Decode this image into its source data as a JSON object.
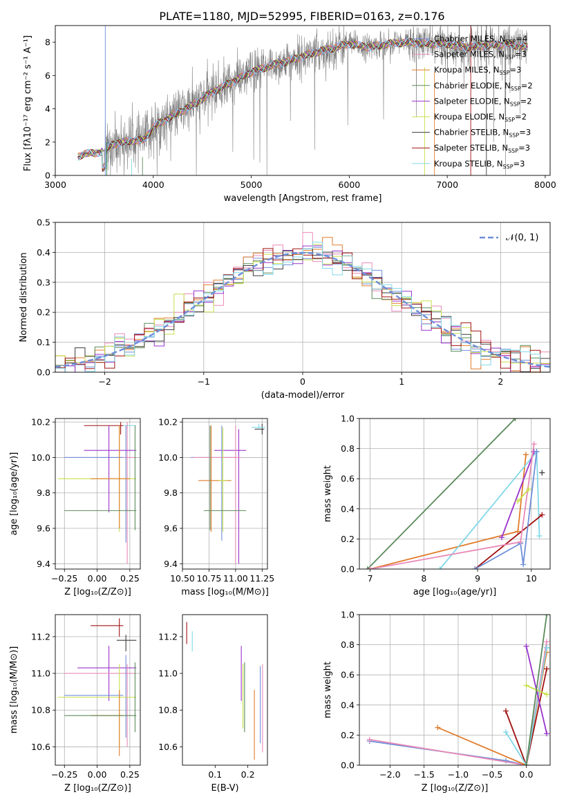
{
  "figure": {
    "title": "PLATE=1180, MJD=52995, FIBERID=0163, z=0.176"
  },
  "palette": [
    "#6d8ed8",
    "#e07b2a",
    "#2e8b57",
    "#9932cc",
    "#ff8c00",
    "#7fa07f",
    "#6a0dad",
    "#c8e04a",
    "#3a3a3a",
    "#a01010",
    "#80d8e8",
    "#e88ab8"
  ],
  "chart_data": [
    {
      "id": "spectrum",
      "type": "line",
      "xlabel": "wavelength [Angstrom, rest frame]",
      "ylabel": "Flux [fλ10⁻¹⁷ erg cm⁻² s⁻¹ A⁻¹]",
      "xlim": [
        3000,
        8050
      ],
      "ylim": [
        0,
        9
      ],
      "xticks": [
        "3000",
        "4000",
        "5000",
        "6000",
        "7000",
        "8000"
      ],
      "yticks": [
        "0",
        "2",
        "4",
        "6",
        "8"
      ],
      "grid": false,
      "legend_position": "top-right",
      "data_range": [
        3230,
        7820
      ],
      "series": [
        {
          "name": "Chabrier MILES, N",
          "sub": "SSP",
          "suffix": "=4",
          "color": "#6d8ed8"
        },
        {
          "name": "Salpeter MILES, N",
          "sub": "SSP",
          "suffix": "=3",
          "color": "#e88ab8"
        },
        {
          "name": "Kroupa MILES, N",
          "sub": "SSP",
          "suffix": "=3",
          "color": "#e07b2a"
        },
        {
          "name": "Chabrier ELODIE, N",
          "sub": "SSP",
          "suffix": "=2",
          "color": "#5a8a5a"
        },
        {
          "name": "Salpeter ELODIE, N",
          "sub": "SSP",
          "suffix": "=2",
          "color": "#9932cc"
        },
        {
          "name": "Kroupa ELODIE, N",
          "sub": "SSP",
          "suffix": "=2",
          "color": "#c8e04a"
        },
        {
          "name": "Chabrier STELIB, N",
          "sub": "SSP",
          "suffix": "=3",
          "color": "#3a3a3a"
        },
        {
          "name": "Salpeter STELIB, N",
          "sub": "SSP",
          "suffix": "=3",
          "color": "#a01010"
        },
        {
          "name": "Kroupa STELIB, N",
          "sub": "SSP",
          "suffix": "=3",
          "color": "#80d8e8"
        }
      ],
      "continuum": [
        [
          3230,
          1.1
        ],
        [
          3300,
          1.35
        ],
        [
          3400,
          1.3
        ],
        [
          3500,
          1.5
        ],
        [
          3600,
          1.9
        ],
        [
          3700,
          2.0
        ],
        [
          3800,
          2.1
        ],
        [
          3900,
          2.1
        ],
        [
          4000,
          2.9
        ],
        [
          4200,
          3.6
        ],
        [
          4400,
          4.2
        ],
        [
          4600,
          5.0
        ],
        [
          4800,
          5.6
        ],
        [
          5000,
          6.2
        ],
        [
          5200,
          6.6
        ],
        [
          5400,
          6.9
        ],
        [
          5600,
          7.3
        ],
        [
          5800,
          7.6
        ],
        [
          6000,
          7.9
        ],
        [
          6200,
          7.7
        ],
        [
          6400,
          7.9
        ],
        [
          6600,
          8.0
        ],
        [
          6800,
          7.9
        ],
        [
          7000,
          7.9
        ],
        [
          7200,
          7.7
        ],
        [
          7400,
          7.8
        ],
        [
          7600,
          7.9
        ],
        [
          7820,
          7.7
        ]
      ]
    },
    {
      "id": "residuals",
      "type": "histogram",
      "xlabel": "(data-model)/error",
      "ylabel": "Normed distribution",
      "xlim": [
        -2.5,
        2.5
      ],
      "ylim": [
        0,
        0.5
      ],
      "xticks": [
        "−2",
        "−1",
        "0",
        "1",
        "2"
      ],
      "yticks": [
        "0.0",
        "0.1",
        "0.2",
        "0.3",
        "0.4",
        "0.5"
      ],
      "grid": true,
      "legend_position": "top-right",
      "gaussian_label": "𝒩(0, 1)",
      "gaussian_color": "#6d8ed8"
    },
    {
      "id": "age_vs_Z",
      "type": "errorbar",
      "xlabel": "Z [log₁₀(Z/Z⊙)]",
      "ylabel": "age  [log₁₀(age/yr)]",
      "xlim": [
        -0.32,
        0.33
      ],
      "ylim": [
        9.37,
        10.22
      ],
      "xticks": [
        "−0.25",
        "0.00",
        "0.25"
      ],
      "yticks": [
        "9.4",
        "9.6",
        "9.8",
        "10.0",
        "10.2"
      ],
      "grid": true,
      "points": [
        {
          "x": 0.18,
          "y": 10.18,
          "xl": -0.1,
          "xh": 0.2,
          "yl": 10.13,
          "yh": 10.2,
          "c": "#a01010"
        },
        {
          "x": 0.23,
          "y": 10.18,
          "xl": 0.2,
          "xh": 0.3,
          "yl": 10.16,
          "yh": 10.19,
          "c": "#80d8e8"
        },
        {
          "x": 0.23,
          "y": 10.0,
          "xl": -0.25,
          "xh": 0.3,
          "yl": 9.4,
          "yh": 10.2,
          "c": "#e88ab8"
        },
        {
          "x": 0.22,
          "y": 10.0,
          "xl": -0.25,
          "xh": 0.2,
          "yl": 9.52,
          "yh": 10.18,
          "c": "#6d8ed8"
        },
        {
          "x": 0.09,
          "y": 10.04,
          "xl": -0.1,
          "xh": 0.3,
          "yl": 9.69,
          "yh": 10.18,
          "c": "#9932cc"
        },
        {
          "x": 0.17,
          "y": 9.88,
          "xl": -0.3,
          "xh": 0.3,
          "yl": 9.58,
          "yh": 10.18,
          "c": "#c8e04a"
        },
        {
          "x": 0.17,
          "y": 9.88,
          "xl": -0.05,
          "xh": 0.25,
          "yl": 9.6,
          "yh": 10.18,
          "c": "#e07b2a"
        },
        {
          "x": 0.29,
          "y": 9.7,
          "xl": -0.25,
          "xh": 0.3,
          "yl": 9.59,
          "yh": 10.18,
          "c": "#5a8a5a"
        }
      ]
    },
    {
      "id": "age_vs_mass",
      "type": "errorbar",
      "xlabel": "mass [log₁₀(M/M⊙)]",
      "ylabel": "",
      "xlim": [
        10.5,
        11.3
      ],
      "ylim": [
        9.37,
        10.22
      ],
      "xticks": [
        "10.50",
        "10.75",
        "11.00",
        "11.25"
      ],
      "yticks": [
        "9.4",
        "9.6",
        "9.8",
        "10.0",
        "10.2"
      ],
      "grid": true,
      "points": [
        {
          "x": 11.25,
          "y": 10.16,
          "xl": 11.18,
          "xh": 11.27,
          "yl": 10.13,
          "yh": 10.19,
          "c": "#3a3a3a"
        },
        {
          "x": 11.22,
          "y": 10.17,
          "xl": 11.15,
          "xh": 11.28,
          "yl": 10.16,
          "yh": 10.19,
          "c": "#80d8e8"
        },
        {
          "x": 11.03,
          "y": 10.04,
          "xl": 10.8,
          "xh": 11.1,
          "yl": 9.4,
          "yh": 10.16,
          "c": "#9932cc"
        },
        {
          "x": 10.87,
          "y": 10.0,
          "xl": 10.58,
          "xh": 11.0,
          "yl": 9.53,
          "yh": 10.18,
          "c": "#6d8ed8"
        },
        {
          "x": 11.0,
          "y": 10.0,
          "xl": 10.6,
          "xh": 11.05,
          "yl": 9.4,
          "yh": 10.18,
          "c": "#e88ab8"
        },
        {
          "x": 10.77,
          "y": 9.87,
          "xl": 10.65,
          "xh": 10.96,
          "yl": 9.58,
          "yh": 10.18,
          "c": "#e07b2a"
        },
        {
          "x": 10.88,
          "y": 9.87,
          "xl": 10.84,
          "xh": 10.92,
          "yl": 9.58,
          "yh": 10.17,
          "c": "#c8e04a"
        },
        {
          "x": 10.76,
          "y": 9.7,
          "xl": 10.7,
          "xh": 11.1,
          "yl": 9.59,
          "yh": 10.18,
          "c": "#5a8a5a"
        }
      ]
    },
    {
      "id": "weight_vs_age",
      "type": "line",
      "xlabel": "age  [log₁₀(age/yr)]",
      "ylabel": "mass weight",
      "xlim": [
        6.8,
        10.35
      ],
      "ylim": [
        0,
        1.0
      ],
      "xticks": [
        "7",
        "8",
        "9",
        "10"
      ],
      "yticks": [
        "0.0",
        "0.2",
        "0.4",
        "0.6",
        "0.8",
        "1.0"
      ],
      "grid": true,
      "series": [
        {
          "c": "#5a8a5a",
          "pts": [
            [
              6.95,
              0.0
            ],
            [
              9.7,
              1.0
            ]
          ]
        },
        {
          "c": "#e07b2a",
          "pts": [
            [
              7.0,
              0.0
            ],
            [
              9.75,
              0.25
            ],
            [
              9.9,
              0.76
            ]
          ]
        },
        {
          "c": "#80d8e8",
          "pts": [
            [
              8.3,
              0.0
            ],
            [
              10.1,
              0.78
            ],
            [
              10.15,
              0.22
            ]
          ]
        },
        {
          "c": "#a01010",
          "pts": [
            [
              8.95,
              0.0
            ],
            [
              10.2,
              0.36
            ]
          ]
        },
        {
          "c": "#9932cc",
          "pts": [
            [
              9.45,
              0.21
            ],
            [
              10.05,
              0.78
            ]
          ]
        },
        {
          "c": "#6d8ed8",
          "pts": [
            [
              8.95,
              0.0
            ],
            [
              9.8,
              0.17
            ],
            [
              9.85,
              0.03
            ],
            [
              10.1,
              0.78
            ]
          ]
        },
        {
          "c": "#e88ab8",
          "pts": [
            [
              7.0,
              0.0
            ],
            [
              9.8,
              0.18
            ],
            [
              10.05,
              0.83
            ]
          ]
        },
        {
          "c": "#c8e04a",
          "pts": [
            [
              9.75,
              0.45
            ],
            [
              9.95,
              0.53
            ]
          ]
        },
        {
          "c": "#3a3a3a",
          "pts": [
            [
              10.2,
              0.64
            ]
          ]
        }
      ]
    },
    {
      "id": "mass_vs_Z",
      "type": "errorbar",
      "xlabel": "Z [log₁₀(Z/Z⊙)]",
      "ylabel": "mass [log₁₀(M/M⊙)]",
      "xlim": [
        -0.32,
        0.33
      ],
      "ylim": [
        10.5,
        11.32
      ],
      "xticks": [
        "−0.25",
        "0.00",
        "0.25"
      ],
      "yticks": [
        "10.6",
        "10.8",
        "11.0",
        "11.2"
      ],
      "grid": true,
      "points": [
        {
          "x": 0.17,
          "y": 11.26,
          "xl": -0.05,
          "xh": 0.2,
          "yl": 11.2,
          "yh": 11.3,
          "c": "#a01010"
        },
        {
          "x": 0.22,
          "y": 11.18,
          "xl": 0.15,
          "xh": 0.3,
          "yl": 11.12,
          "yh": 11.21,
          "c": "#3a3a3a"
        },
        {
          "x": 0.09,
          "y": 11.03,
          "xl": -0.15,
          "xh": 0.3,
          "yl": 10.85,
          "yh": 11.15,
          "c": "#9932cc"
        },
        {
          "x": 0.23,
          "y": 11.0,
          "xl": -0.25,
          "xh": 0.3,
          "yl": 10.6,
          "yh": 11.05,
          "c": "#e88ab8"
        },
        {
          "x": 0.22,
          "y": 10.88,
          "xl": -0.25,
          "xh": 0.2,
          "yl": 10.65,
          "yh": 11.1,
          "c": "#6d8ed8"
        },
        {
          "x": 0.17,
          "y": 10.87,
          "xl": -0.3,
          "xh": 0.3,
          "yl": 10.6,
          "yh": 11.05,
          "c": "#c8e04a"
        },
        {
          "x": 0.17,
          "y": 10.77,
          "xl": -0.05,
          "xh": 0.2,
          "yl": 10.55,
          "yh": 10.91,
          "c": "#e07b2a"
        },
        {
          "x": 0.29,
          "y": 10.77,
          "xl": -0.25,
          "xh": 0.3,
          "yl": 10.68,
          "yh": 11.06,
          "c": "#5a8a5a"
        }
      ]
    },
    {
      "id": "mass_vs_ebv",
      "type": "errorbar",
      "xlabel": "E(B-V)",
      "ylabel": "",
      "xlim": [
        0.0,
        0.26
      ],
      "ylim": [
        10.5,
        11.32
      ],
      "xticks": [
        "0.1",
        "0.2"
      ],
      "yticks": [
        "10.6",
        "10.8",
        "11.0",
        "11.2"
      ],
      "grid": false,
      "points": [
        {
          "x": 0.013,
          "y": 11.22,
          "yl": 11.16,
          "yh": 11.28,
          "c": "#a01010"
        },
        {
          "x": 0.03,
          "y": 11.18,
          "yl": 11.12,
          "yh": 11.23,
          "c": "#80d8e8"
        },
        {
          "x": 0.18,
          "y": 11.03,
          "yl": 10.85,
          "yh": 11.15,
          "c": "#9932cc"
        },
        {
          "x": 0.185,
          "y": 10.87,
          "yl": 10.7,
          "yh": 11.05,
          "c": "#c8e04a"
        },
        {
          "x": 0.19,
          "y": 10.9,
          "yl": 10.68,
          "yh": 11.06,
          "c": "#5a8a5a"
        },
        {
          "x": 0.22,
          "y": 10.77,
          "yl": 10.53,
          "yh": 10.91,
          "c": "#e07b2a"
        },
        {
          "x": 0.238,
          "y": 10.9,
          "yl": 10.62,
          "yh": 11.04,
          "c": "#6d8ed8"
        },
        {
          "x": 0.245,
          "y": 10.83,
          "yl": 10.57,
          "yh": 11.05,
          "c": "#e88ab8"
        }
      ]
    },
    {
      "id": "weight_vs_Z",
      "type": "line",
      "xlabel": "Z [log₁₀(Z/Z⊙)]",
      "ylabel": "mass weight",
      "xlim": [
        -2.45,
        0.35
      ],
      "ylim": [
        0,
        1.0
      ],
      "xticks": [
        "−2.0",
        "−1.5",
        "−1.0",
        "−0.5",
        "0.0"
      ],
      "yticks": [
        "0.0",
        "0.2",
        "0.4",
        "0.6",
        "0.8",
        "1.0"
      ],
      "grid": true,
      "series": [
        {
          "c": "#6d8ed8",
          "pts": [
            [
              -2.3,
              0.16
            ],
            [
              -0.3,
              0.03
            ],
            [
              0.0,
              0.0
            ],
            [
              0.3,
              0.78
            ]
          ]
        },
        {
          "c": "#e88ab8",
          "pts": [
            [
              -2.3,
              0.17
            ],
            [
              0.0,
              0.0
            ],
            [
              0.3,
              0.82
            ]
          ]
        },
        {
          "c": "#e07b2a",
          "pts": [
            [
              -1.3,
              0.25
            ],
            [
              0.0,
              0.0
            ],
            [
              0.3,
              0.75
            ]
          ]
        },
        {
          "c": "#a01010",
          "pts": [
            [
              -0.3,
              0.36
            ],
            [
              0.0,
              0.0
            ],
            [
              0.3,
              0.64
            ]
          ]
        },
        {
          "c": "#80d8e8",
          "pts": [
            [
              -0.3,
              0.22
            ],
            [
              0.0,
              0.0
            ],
            [
              0.3,
              0.78
            ]
          ]
        },
        {
          "c": "#9932cc",
          "pts": [
            [
              0.0,
              0.79
            ],
            [
              0.3,
              0.21
            ]
          ]
        },
        {
          "c": "#c8e04a",
          "pts": [
            [
              0.0,
              0.53
            ],
            [
              0.3,
              0.47
            ]
          ]
        },
        {
          "c": "#5a8a5a",
          "pts": [
            [
              0.0,
              0.0
            ],
            [
              0.3,
              1.0
            ]
          ]
        }
      ]
    }
  ]
}
